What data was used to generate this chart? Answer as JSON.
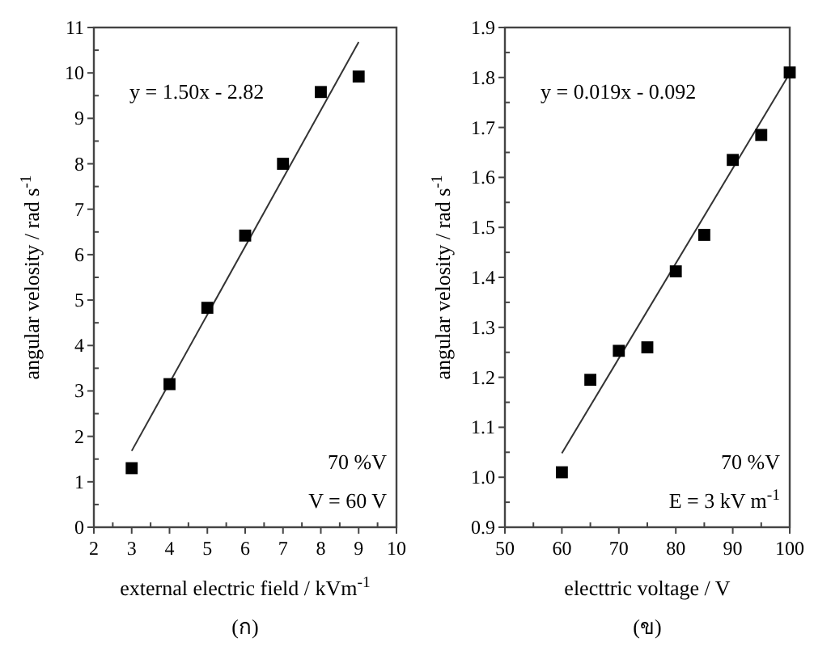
{
  "chart_data": [
    {
      "type": "scatter",
      "title": "(ก)",
      "xlabel": "external electric field / kVm$^{-1}$",
      "ylabel": "angular velosity / rad s$^{-1}$",
      "xlim": [
        2,
        10
      ],
      "xticks": [
        2,
        3,
        4,
        5,
        6,
        7,
        8,
        9,
        10
      ],
      "ylim": [
        0,
        11
      ],
      "yticks": [
        0,
        1,
        2,
        3,
        4,
        5,
        6,
        7,
        8,
        9,
        10,
        11
      ],
      "grid": false,
      "annotations": [
        "y = 1.50x - 2.82",
        "70 %V",
        "V = 60 V"
      ],
      "series": [
        {
          "marker": "square",
          "color": "#000000",
          "x": [
            3,
            4,
            5,
            6,
            7,
            8,
            9
          ],
          "values": [
            1.3,
            3.15,
            4.83,
            6.42,
            8.0,
            9.58,
            9.92
          ]
        },
        {
          "type": "line",
          "color": "#333333",
          "x": [
            3,
            9
          ],
          "values": [
            1.68,
            10.68
          ]
        }
      ]
    },
    {
      "type": "scatter",
      "title": "(ข)",
      "xlabel": "electtric voltage / V",
      "ylabel": "angular velosity / rad s$^{-1}$",
      "xlim": [
        50,
        100
      ],
      "xticks": [
        50,
        60,
        70,
        80,
        90,
        100
      ],
      "ylim": [
        0.9,
        1.9
      ],
      "yticks": [
        {
          "value": 0.9,
          "label": "0.9"
        },
        {
          "value": 1.0,
          "label": "1.0"
        },
        {
          "value": 1.1,
          "label": "1.1"
        },
        {
          "value": 1.2,
          "label": "1.2"
        },
        {
          "value": 1.3,
          "label": "1.3"
        },
        {
          "value": 1.4,
          "label": "1.4"
        },
        {
          "value": 1.5,
          "label": "1.5"
        },
        {
          "value": 1.6,
          "label": "1.6"
        },
        {
          "value": 1.7,
          "label": "1.7"
        },
        {
          "value": 1.8,
          "label": "1.8"
        },
        {
          "value": 1.9,
          "label": "1.9"
        }
      ],
      "grid": false,
      "annotations": [
        "y = 0.019x - 0.092",
        "70 %V",
        "E = 3 kV m$^{-1}$"
      ],
      "series": [
        {
          "marker": "square",
          "color": "#000000",
          "x": [
            60,
            65,
            70,
            75,
            80,
            85,
            90,
            95,
            100
          ],
          "values": [
            1.01,
            1.195,
            1.253,
            1.26,
            1.412,
            1.485,
            1.635,
            1.685,
            1.81
          ]
        },
        {
          "type": "line",
          "color": "#333333",
          "x": [
            60,
            100
          ],
          "values": [
            1.048,
            1.808
          ]
        }
      ]
    }
  ]
}
